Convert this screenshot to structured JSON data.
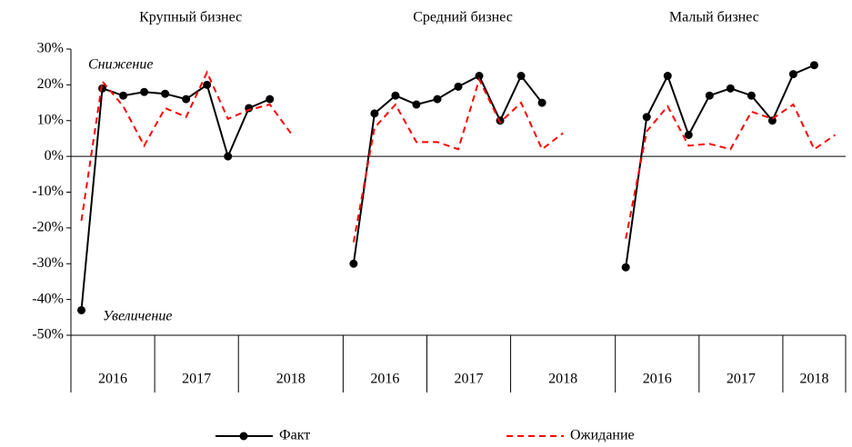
{
  "chart_data": {
    "type": "line",
    "panels": [
      {
        "title": "Крупный бизнес",
        "years": [
          {
            "label": "2016",
            "span": 4
          },
          {
            "label": "2017",
            "span": 4
          },
          {
            "label": "2018",
            "span": 5
          }
        ]
      },
      {
        "title": "Средний бизнес",
        "years": [
          {
            "label": "2016",
            "span": 4
          },
          {
            "label": "2017",
            "span": 4
          },
          {
            "label": "2018",
            "span": 5
          }
        ]
      },
      {
        "title": "Малый бизнес",
        "years": [
          {
            "label": "2016",
            "span": 4
          },
          {
            "label": "2017",
            "span": 4
          },
          {
            "label": "2018",
            "span": 3
          }
        ]
      }
    ],
    "series": [
      {
        "name": "Факт",
        "color": "#000000",
        "style": "solid",
        "markers": true,
        "values": [
          -43,
          19,
          17,
          18,
          17.5,
          16,
          20,
          0,
          13.5,
          16,
          null,
          null,
          null,
          -30,
          12,
          17,
          14.5,
          16,
          19.5,
          22.5,
          10,
          22.5,
          15,
          null,
          null,
          null,
          -31,
          11,
          22.5,
          6,
          17,
          19,
          17,
          10,
          23,
          25.5,
          null
        ]
      },
      {
        "name": "Ожидание",
        "color": "#ff0000",
        "style": "dashed",
        "markers": false,
        "values": [
          -18,
          21,
          14,
          3,
          13.5,
          11,
          23.5,
          10.5,
          13,
          14.5,
          6.5,
          null,
          null,
          -24,
          8,
          14.5,
          4,
          4,
          2,
          21.5,
          9.5,
          15,
          2,
          6.5,
          null,
          null,
          -23,
          7,
          14,
          3,
          3.5,
          2,
          12.5,
          10.5,
          14.5,
          2,
          6
        ]
      }
    ],
    "ylim": [
      -50,
      30
    ],
    "yticks": [
      {
        "value": -50,
        "label": "-50%"
      },
      {
        "value": -40,
        "label": "-40%"
      },
      {
        "value": -30,
        "label": "-30%"
      },
      {
        "value": -20,
        "label": "-20%"
      },
      {
        "value": -10,
        "label": "-10%"
      },
      {
        "value": 0,
        "label": "0%"
      },
      {
        "value": 10,
        "label": "10%"
      },
      {
        "value": 20,
        "label": "20%"
      },
      {
        "value": 30,
        "label": "30%"
      }
    ],
    "annotations": [
      "Снижение",
      "Увеличение"
    ],
    "legend": "bottom"
  }
}
